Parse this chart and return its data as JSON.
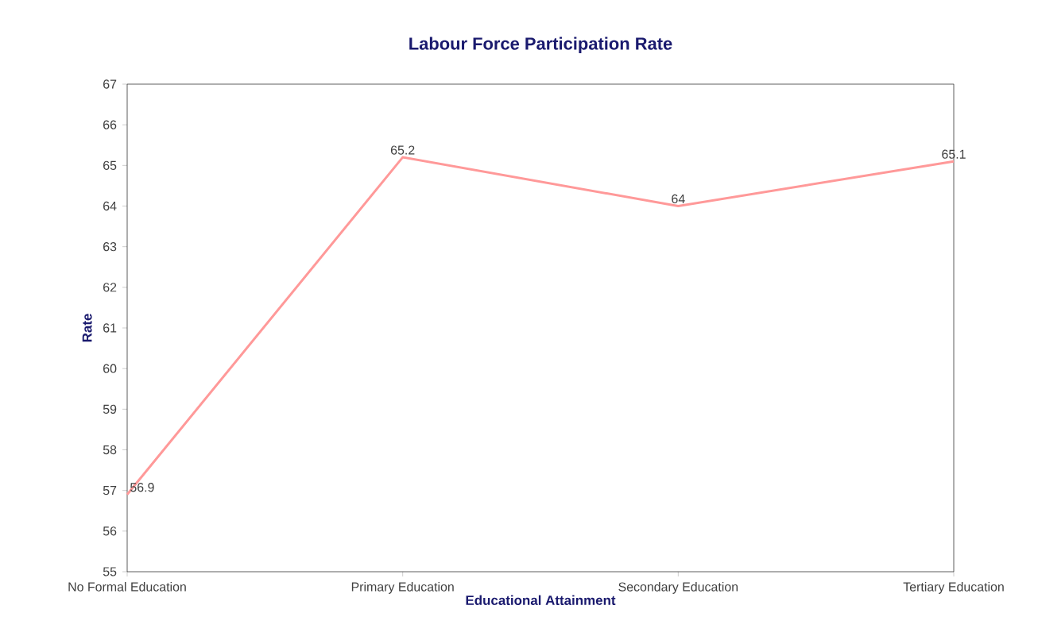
{
  "chart_data": {
    "type": "line",
    "title": "Labour Force Participation Rate",
    "xlabel": "Educational Attainment",
    "ylabel": "Rate",
    "categories": [
      "No Formal Education",
      "Primary Education",
      "Secondary Education",
      "Tertiary Education"
    ],
    "values": [
      56.9,
      65.2,
      64,
      65.1
    ],
    "color": "#ff9999",
    "ylim": [
      55,
      67
    ],
    "yticks": [
      55,
      56,
      57,
      58,
      59,
      60,
      61,
      62,
      63,
      64,
      65,
      66,
      67
    ],
    "data_labels": true,
    "grid": false,
    "marker": "none"
  }
}
